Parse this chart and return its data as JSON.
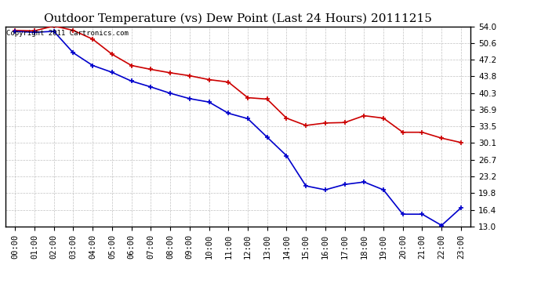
{
  "title": "Outdoor Temperature (vs) Dew Point (Last 24 Hours) 20111215",
  "copyright_text": "Copyright 2011 Cartronics.com",
  "x_labels": [
    "00:00",
    "01:00",
    "02:00",
    "03:00",
    "04:00",
    "05:00",
    "06:00",
    "07:00",
    "08:00",
    "09:00",
    "10:00",
    "11:00",
    "12:00",
    "13:00",
    "14:00",
    "15:00",
    "16:00",
    "17:00",
    "18:00",
    "19:00",
    "20:00",
    "21:00",
    "22:00",
    "23:00"
  ],
  "temp_values": [
    53.2,
    53.1,
    54.1,
    53.2,
    51.4,
    48.3,
    46.0,
    45.2,
    44.5,
    43.9,
    43.1,
    42.6,
    39.4,
    39.1,
    35.2,
    33.7,
    34.2,
    34.3,
    35.7,
    35.2,
    32.3,
    32.3,
    31.1,
    30.2
  ],
  "dew_values": [
    53.0,
    52.8,
    53.0,
    48.6,
    46.0,
    44.6,
    42.8,
    41.6,
    40.3,
    39.2,
    38.5,
    36.2,
    35.1,
    31.3,
    27.5,
    21.3,
    20.5,
    21.6,
    22.1,
    20.5,
    15.5,
    15.5,
    13.2,
    16.8
  ],
  "temp_color": "#cc0000",
  "dew_color": "#0000cc",
  "background_color": "#ffffff",
  "plot_bg_color": "#ffffff",
  "grid_color": "#bbbbbb",
  "ylim_min": 13.0,
  "ylim_max": 54.0,
  "yticks": [
    13.0,
    16.4,
    19.8,
    23.2,
    26.7,
    30.1,
    33.5,
    36.9,
    40.3,
    43.8,
    47.2,
    50.6,
    54.0
  ],
  "marker": "+",
  "marker_size": 5,
  "marker_edge_width": 1.2,
  "line_width": 1.2,
  "title_fontsize": 11,
  "tick_fontsize": 7.5,
  "copyright_fontsize": 6.5
}
